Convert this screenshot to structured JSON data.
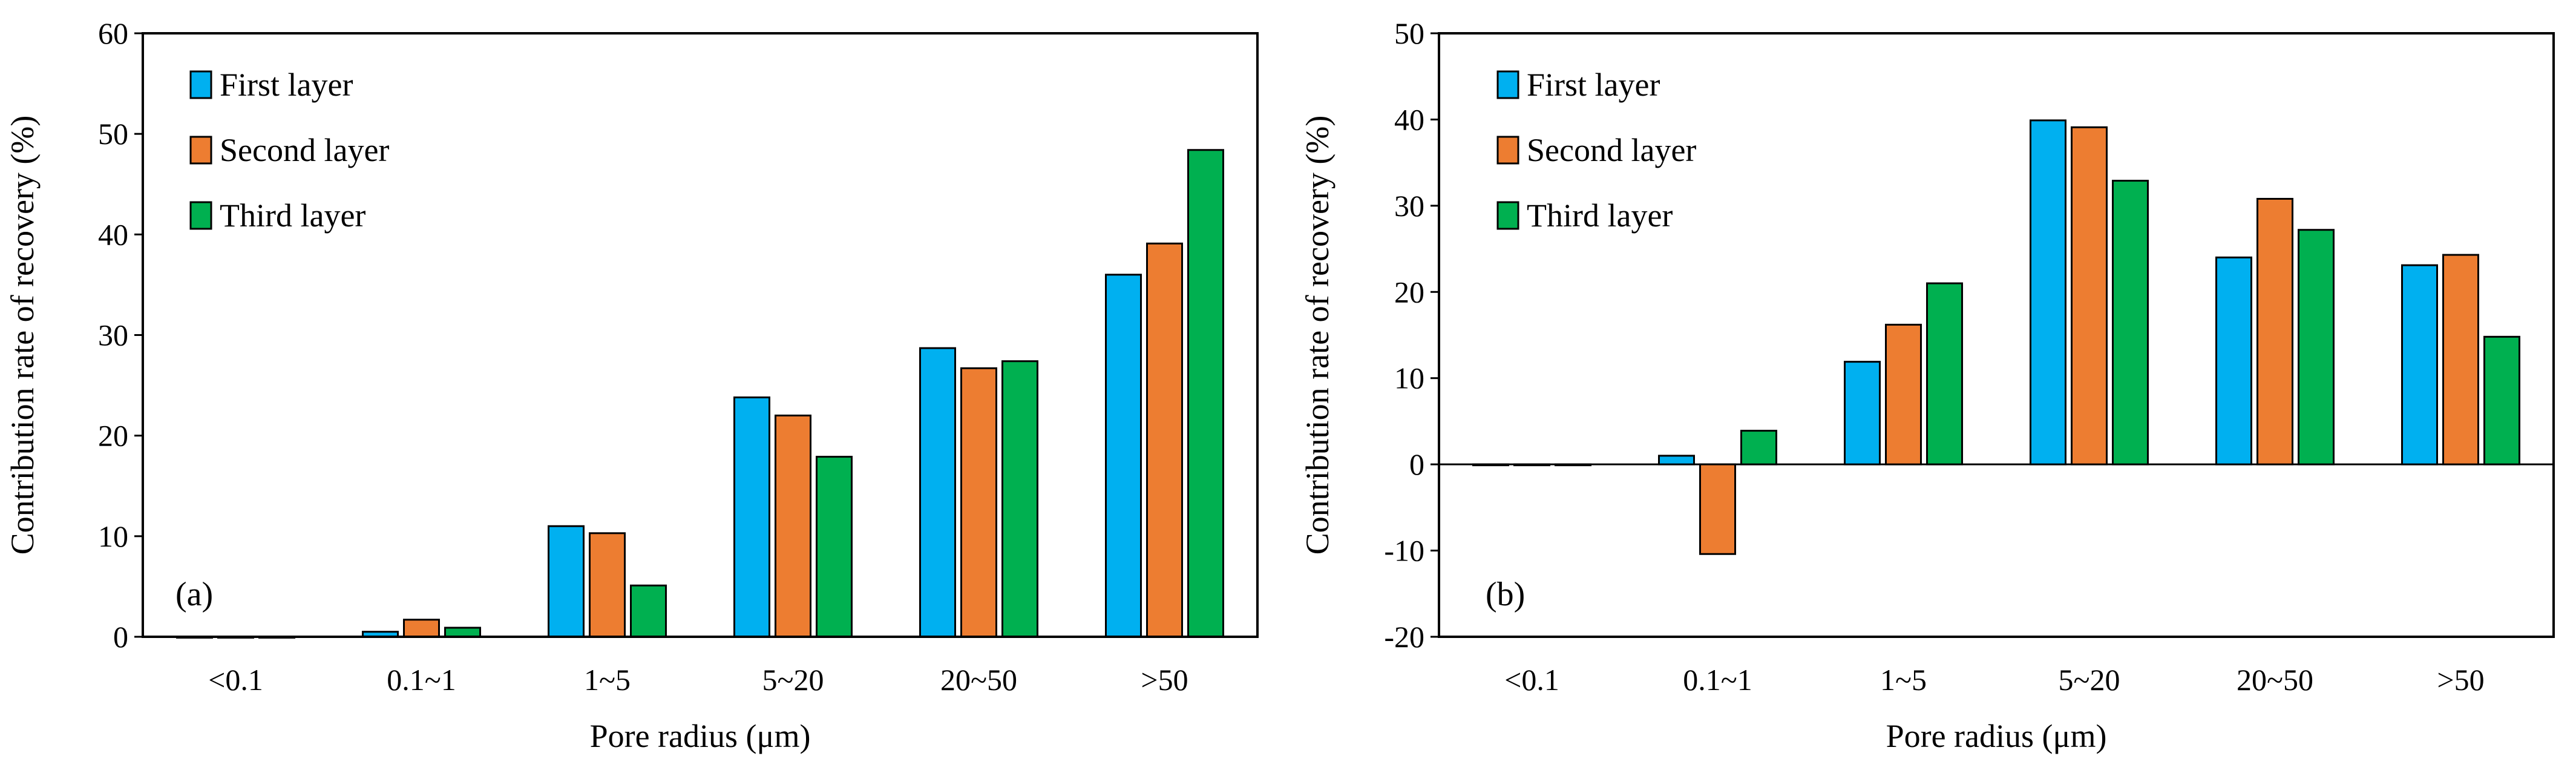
{
  "chart_data": [
    {
      "type": "bar",
      "panel_label": "(a)",
      "title": "",
      "xlabel": "Pore radius (μm)",
      "ylabel": "Contribution rate of recovery (%)",
      "categories": [
        "<0.1",
        "0.1~1",
        "1~5",
        "5~20",
        "20~50",
        ">50"
      ],
      "ylim": [
        0,
        60
      ],
      "yticks": [
        0,
        10,
        20,
        30,
        40,
        50,
        60
      ],
      "legend_position": "top-left",
      "grid": false,
      "series": [
        {
          "name": "First layer",
          "color": "#00B0F0",
          "values": [
            0,
            0.5,
            11,
            23.8,
            28.7,
            36
          ]
        },
        {
          "name": "Second layer",
          "color": "#ED7D31",
          "values": [
            0,
            1.7,
            10.3,
            22,
            26.7,
            39.1
          ]
        },
        {
          "name": "Third layer",
          "color": "#00B050",
          "values": [
            0,
            0.9,
            5.1,
            17.9,
            27.4,
            48.4
          ]
        }
      ]
    },
    {
      "type": "bar",
      "panel_label": "(b)",
      "title": "",
      "xlabel": "Pore radius (μm)",
      "ylabel": "Contribution rate of recovery (%)",
      "categories": [
        "<0.1",
        "0.1~1",
        "1~5",
        "5~20",
        "20~50",
        ">50"
      ],
      "ylim": [
        -20,
        50
      ],
      "yticks": [
        -20,
        -10,
        0,
        10,
        20,
        30,
        40,
        50
      ],
      "legend_position": "top-left",
      "grid": false,
      "series": [
        {
          "name": "First layer",
          "color": "#00B0F0",
          "values": [
            0,
            1,
            11.9,
            39.9,
            24,
            23.1
          ]
        },
        {
          "name": "Second layer",
          "color": "#ED7D31",
          "values": [
            0,
            -10.4,
            16.2,
            39.1,
            30.8,
            24.3
          ]
        },
        {
          "name": "Third layer",
          "color": "#00B050",
          "values": [
            0,
            3.9,
            21,
            32.9,
            27.2,
            14.8
          ]
        }
      ]
    }
  ]
}
